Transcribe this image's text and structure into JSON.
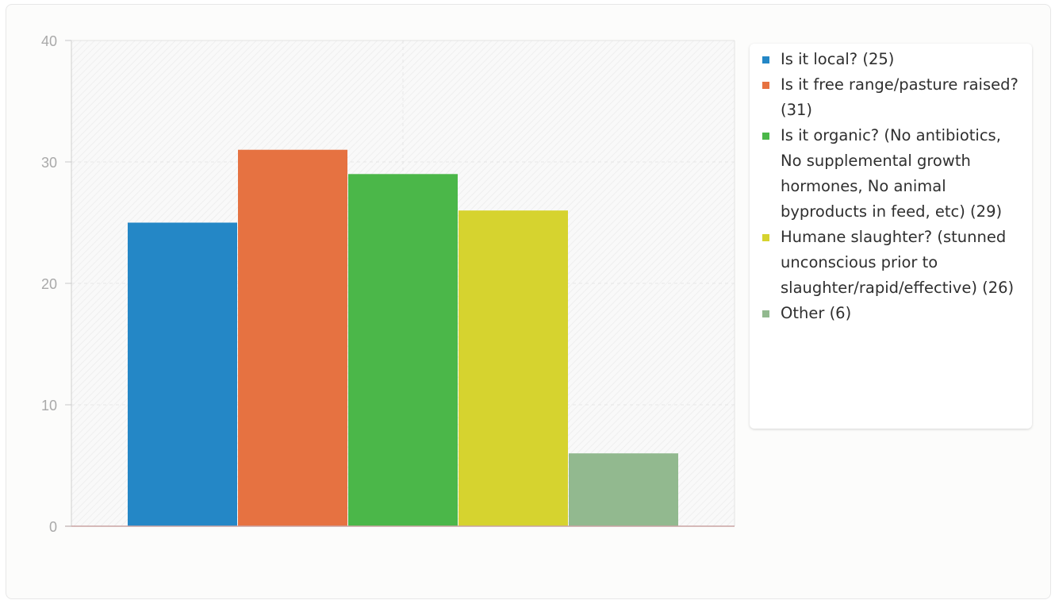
{
  "chart_data": {
    "type": "bar",
    "categories": [
      "Is it local? (25)",
      "Is it free range/pasture raised? (31)",
      "Is it organic? (No antibiotics, No supplemental growth hormones, No animal byproducts in feed, etc) (29)",
      "Humane slaughter? (stunned unconscious prior to slaughter/rapid/effective) (26)",
      "Other (6)"
    ],
    "values": [
      25,
      31,
      29,
      26,
      6
    ],
    "colors": [
      "#2487c6",
      "#e67241",
      "#4bb749",
      "#d6d32f",
      "#92b98f"
    ],
    "ylim": [
      0,
      40
    ],
    "yticks": [
      0,
      10,
      20,
      30,
      40
    ],
    "grid": true,
    "legend_position": "right",
    "title": "",
    "xlabel": "",
    "ylabel": ""
  }
}
